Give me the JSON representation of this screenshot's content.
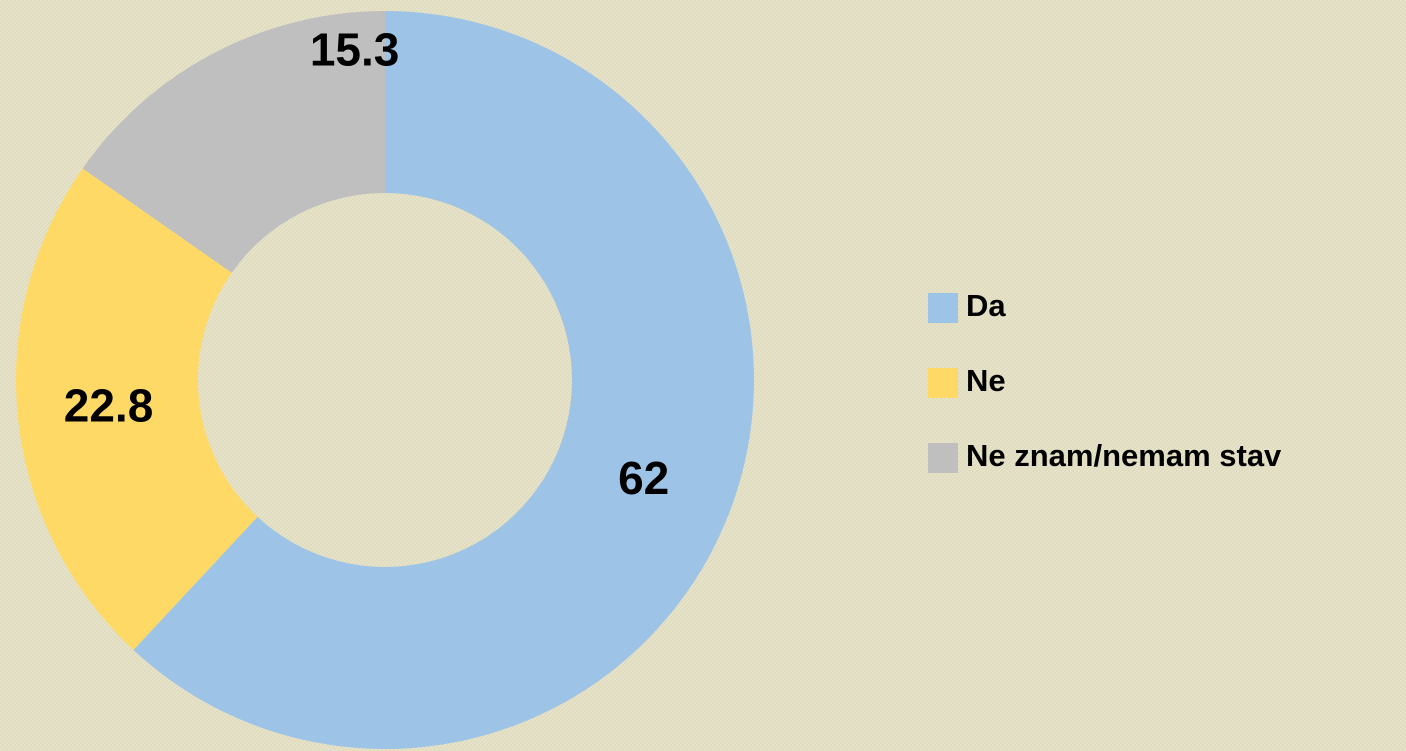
{
  "chart_data": {
    "type": "donut",
    "categories": [
      "Da",
      "Ne",
      "Ne znam/nemam stav"
    ],
    "values": [
      62,
      22.8,
      15.3
    ],
    "colors": [
      "#9dc3e6",
      "#ffd966",
      "#bfbfbf"
    ],
    "legend": "right"
  }
}
